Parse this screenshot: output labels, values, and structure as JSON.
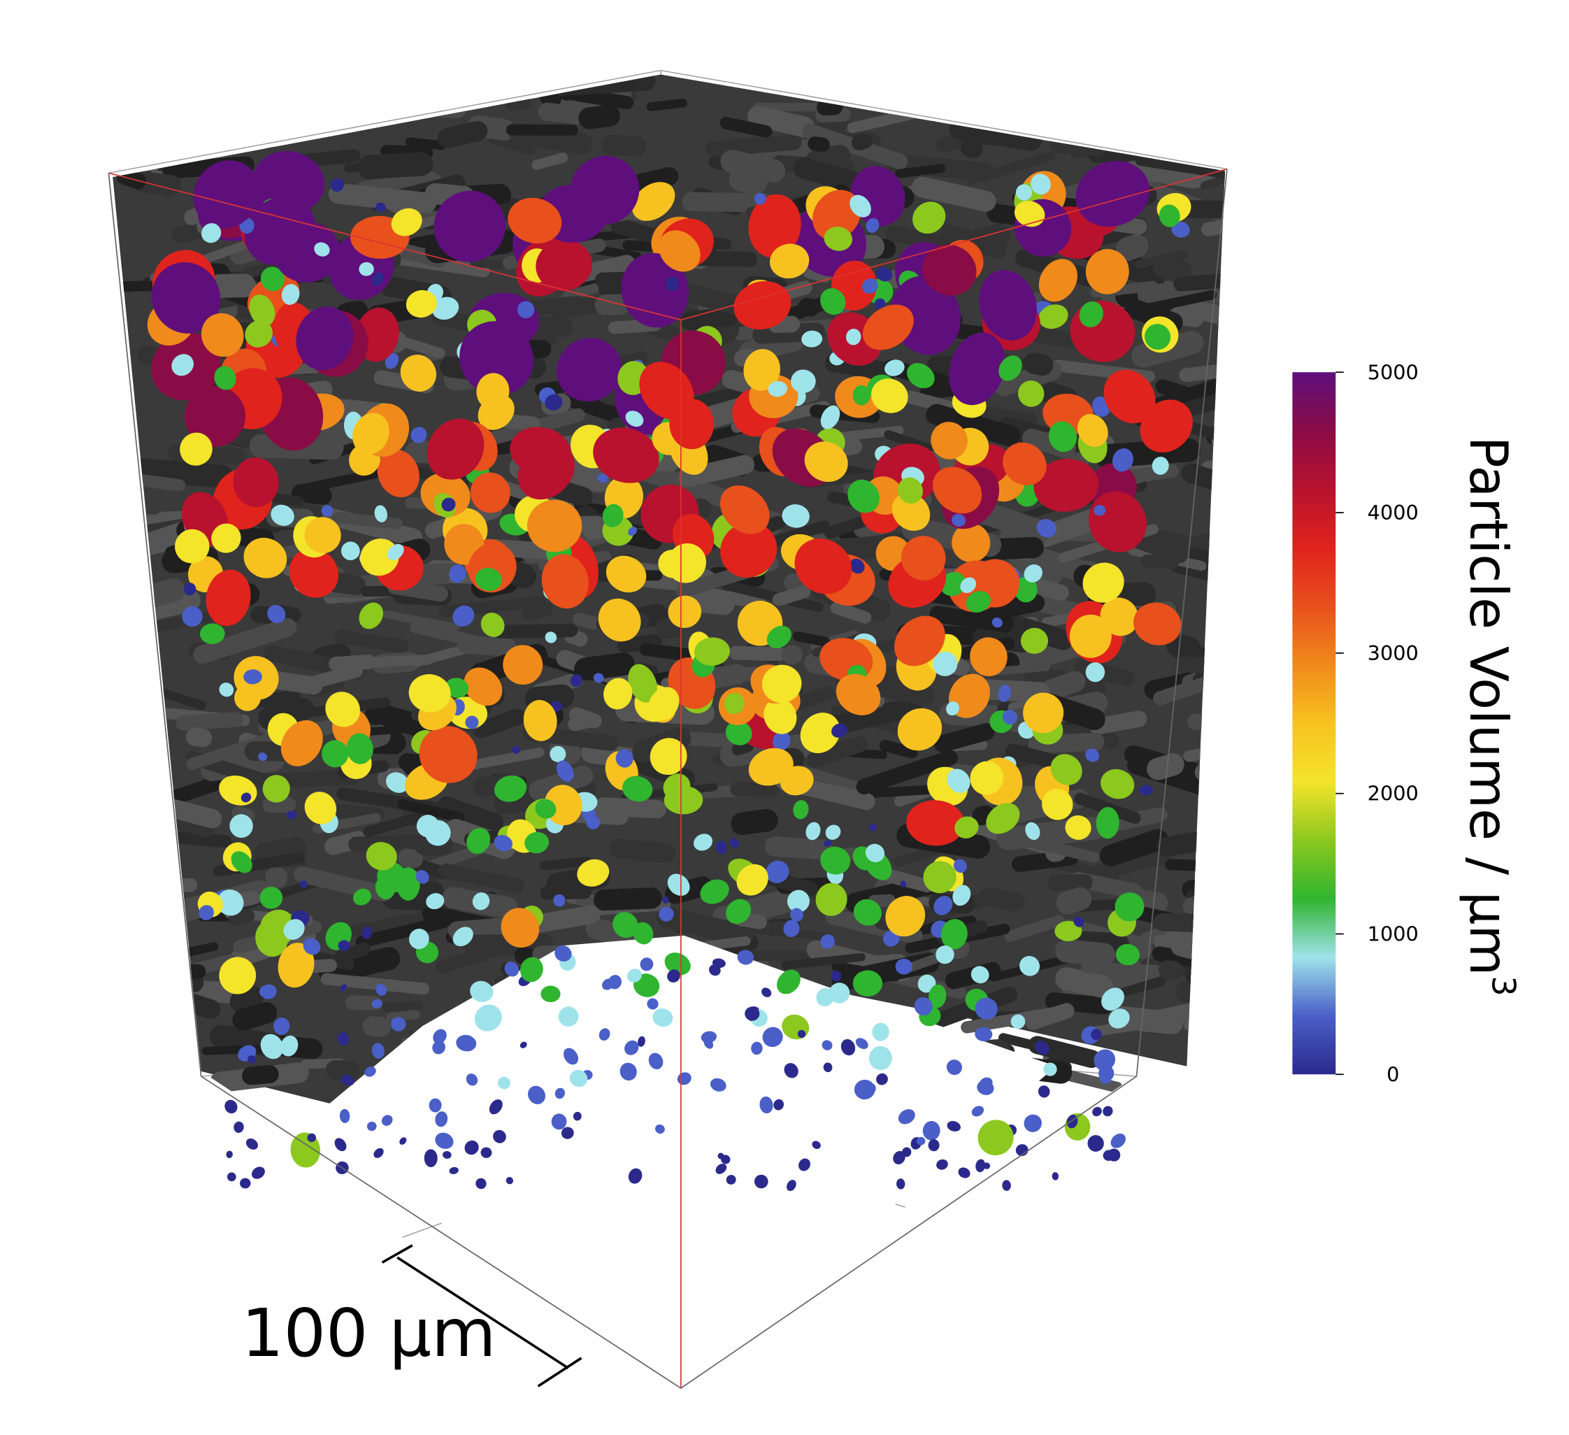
{
  "figure": {
    "scale_bar": {
      "label": "100 µm"
    },
    "colorbar": {
      "label": "Particle Volume / µm",
      "label_superscript": "3",
      "range": [
        0,
        5000
      ],
      "ticks": [
        0,
        1000,
        2000,
        3000,
        4000,
        5000
      ],
      "colors": [
        "#2b2a8c",
        "#4a5fc8",
        "#9fe3ea",
        "#2fb52f",
        "#8cc81e",
        "#f4e42a",
        "#f7c21f",
        "#f08a1b",
        "#e8501c",
        "#e0231c",
        "#b8122e",
        "#8a0c46",
        "#5e0f7c"
      ]
    }
  }
}
